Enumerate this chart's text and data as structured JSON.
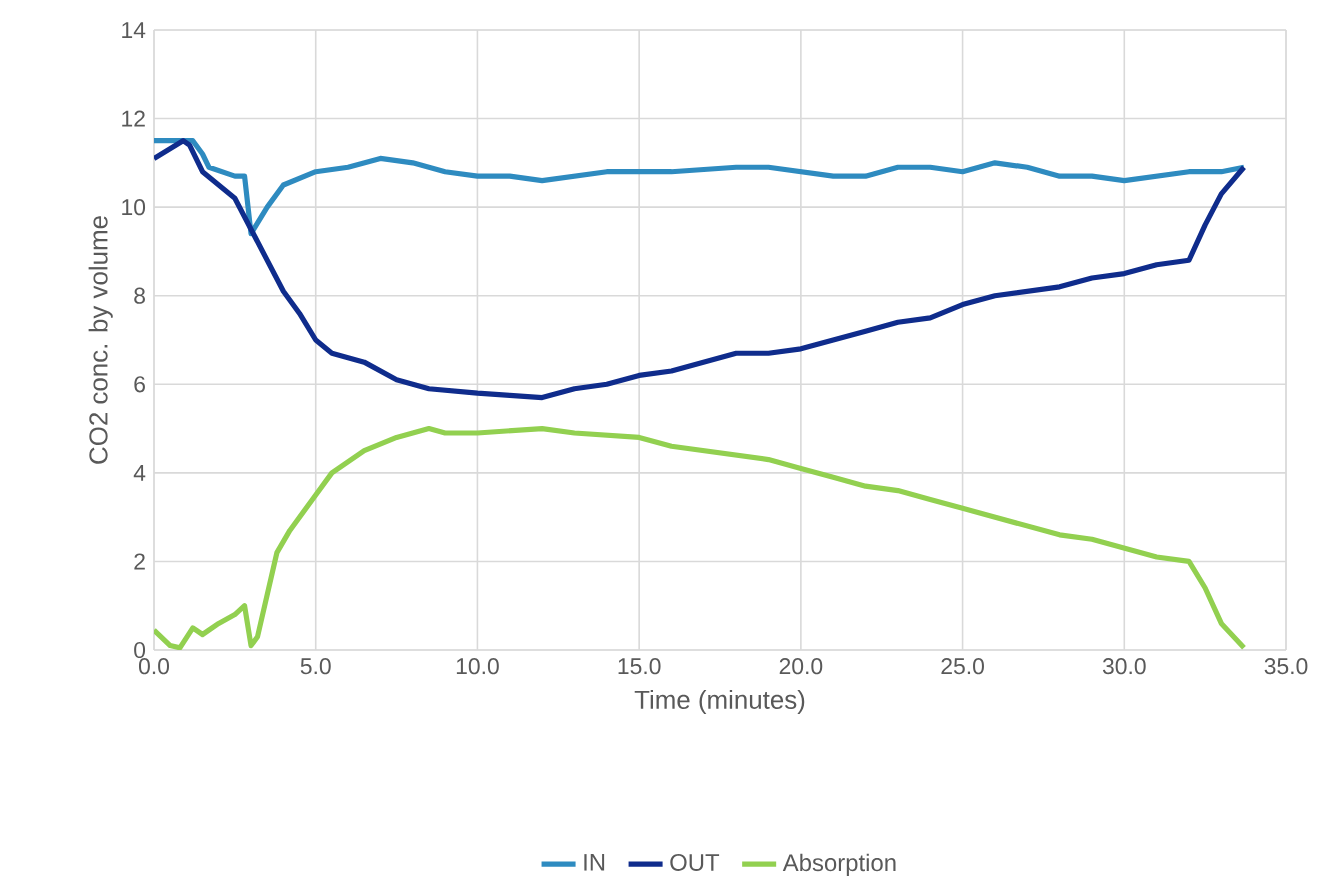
{
  "chart_data": {
    "type": "line",
    "xlabel": "Time (minutes)",
    "ylabel": "CO2 conc. by volume",
    "xlim": [
      0,
      35
    ],
    "ylim": [
      0,
      14
    ],
    "xticks": [
      {
        "value": 0,
        "label": "0.0"
      },
      {
        "value": 5,
        "label": "5.0"
      },
      {
        "value": 10,
        "label": "10.0"
      },
      {
        "value": 15,
        "label": "15.0"
      },
      {
        "value": 20,
        "label": "20.0"
      },
      {
        "value": 25,
        "label": "25.0"
      },
      {
        "value": 30,
        "label": "30.0"
      },
      {
        "value": 35,
        "label": "35.0"
      }
    ],
    "yticks": [
      0,
      2,
      4,
      6,
      8,
      10,
      12,
      14
    ],
    "grid": true,
    "legend": "bottom",
    "marker": "none",
    "line_style": "solid",
    "series": [
      {
        "name": "IN",
        "color": "#2e8bc0",
        "x": [
          0,
          1.2,
          1.5,
          1.7,
          2.5,
          2.8,
          3.0,
          3.5,
          4.0,
          5,
          6,
          7,
          8,
          9,
          10,
          11,
          12,
          13,
          14,
          16,
          18,
          19,
          20,
          21,
          22,
          23,
          24,
          25,
          26,
          27,
          28,
          29,
          30,
          31,
          32,
          33,
          33.7
        ],
        "values": [
          11.5,
          11.5,
          11.2,
          10.9,
          10.7,
          10.7,
          9.4,
          10.0,
          10.5,
          10.8,
          10.9,
          11.1,
          11.0,
          10.8,
          10.7,
          10.7,
          10.6,
          10.7,
          10.8,
          10.8,
          10.9,
          10.9,
          10.8,
          10.7,
          10.7,
          10.9,
          10.9,
          10.8,
          11.0,
          10.9,
          10.7,
          10.7,
          10.6,
          10.7,
          10.8,
          10.8,
          10.9
        ]
      },
      {
        "name": "OUT",
        "color": "#0f2c8c",
        "x": [
          0,
          0.9,
          1.1,
          1.5,
          2.5,
          3.0,
          3.5,
          4.0,
          4.5,
          5.0,
          5.5,
          6.5,
          7.5,
          8.5,
          10,
          11,
          12,
          13,
          14,
          15,
          16,
          17,
          18,
          19,
          20,
          21,
          22,
          23,
          24,
          25,
          26,
          27,
          28,
          29,
          30,
          31,
          32,
          32.5,
          33,
          33.7
        ],
        "values": [
          11.1,
          11.5,
          11.4,
          10.8,
          10.2,
          9.5,
          8.8,
          8.1,
          7.6,
          7.0,
          6.7,
          6.5,
          6.1,
          5.9,
          5.8,
          5.75,
          5.7,
          5.9,
          6.0,
          6.2,
          6.3,
          6.5,
          6.7,
          6.7,
          6.8,
          7.0,
          7.2,
          7.4,
          7.5,
          7.8,
          8.0,
          8.1,
          8.2,
          8.4,
          8.5,
          8.7,
          8.8,
          9.6,
          10.3,
          10.9
        ]
      },
      {
        "name": "Absorption",
        "color": "#92d050",
        "x": [
          0,
          0.5,
          0.8,
          1.2,
          1.5,
          2,
          2.5,
          2.8,
          3.0,
          3.2,
          3.8,
          4.2,
          5,
          5.5,
          6.5,
          7.5,
          8.5,
          9,
          10,
          12,
          13,
          15,
          16,
          17,
          18,
          19,
          20,
          21,
          22,
          23,
          24,
          25,
          26,
          27,
          28,
          29,
          30,
          31,
          32,
          32.5,
          33,
          33.7
        ],
        "values": [
          0.45,
          0.1,
          0.05,
          0.5,
          0.35,
          0.6,
          0.8,
          1.0,
          0.1,
          0.3,
          2.2,
          2.7,
          3.5,
          4.0,
          4.5,
          4.8,
          5.0,
          4.9,
          4.9,
          5.0,
          4.9,
          4.8,
          4.6,
          4.5,
          4.4,
          4.3,
          4.1,
          3.9,
          3.7,
          3.6,
          3.4,
          3.2,
          3.0,
          2.8,
          2.6,
          2.5,
          2.3,
          2.1,
          2.0,
          1.4,
          0.6,
          0.05
        ]
      }
    ]
  }
}
